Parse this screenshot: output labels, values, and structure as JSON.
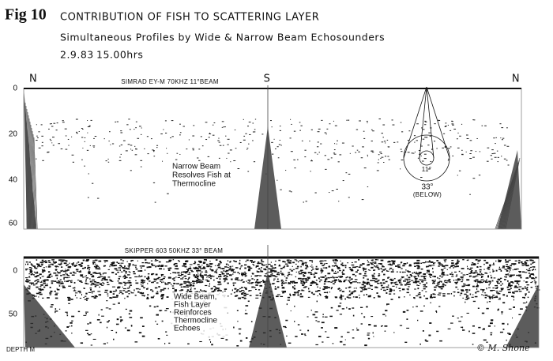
{
  "header": {
    "figure": "Fig 10",
    "title": "CONTRIBUTION OF FISH TO SCATTERING LAYER",
    "subtitle": "Simultaneous Profiles by Wide & Narrow Beam Echosounders",
    "date": "2.9.83",
    "time": "15.00hrs"
  },
  "top_panel": {
    "markers": [
      "N",
      "S",
      "N"
    ],
    "label": "SIMRAD EY-M 70KHZ 11°BEAM",
    "depth_ticks": [
      "0",
      "20",
      "40",
      "60"
    ],
    "annotation": [
      "Narrow Beam",
      "Resolves Fish at",
      "Thermocline"
    ],
    "beam_labels": [
      "11°",
      "33°",
      "(BELOW)"
    ]
  },
  "bottom_panel": {
    "label": "SKIPPER 603 50KHZ 33° BEAM",
    "depth_ticks": [
      "0",
      "50"
    ],
    "annotation": [
      "Wide Beam,",
      "Fish Layer",
      "Reinforces",
      "Thermocline",
      "Echoes"
    ]
  },
  "axis_label": "DEPTH M",
  "credit": "© M. Shone"
}
